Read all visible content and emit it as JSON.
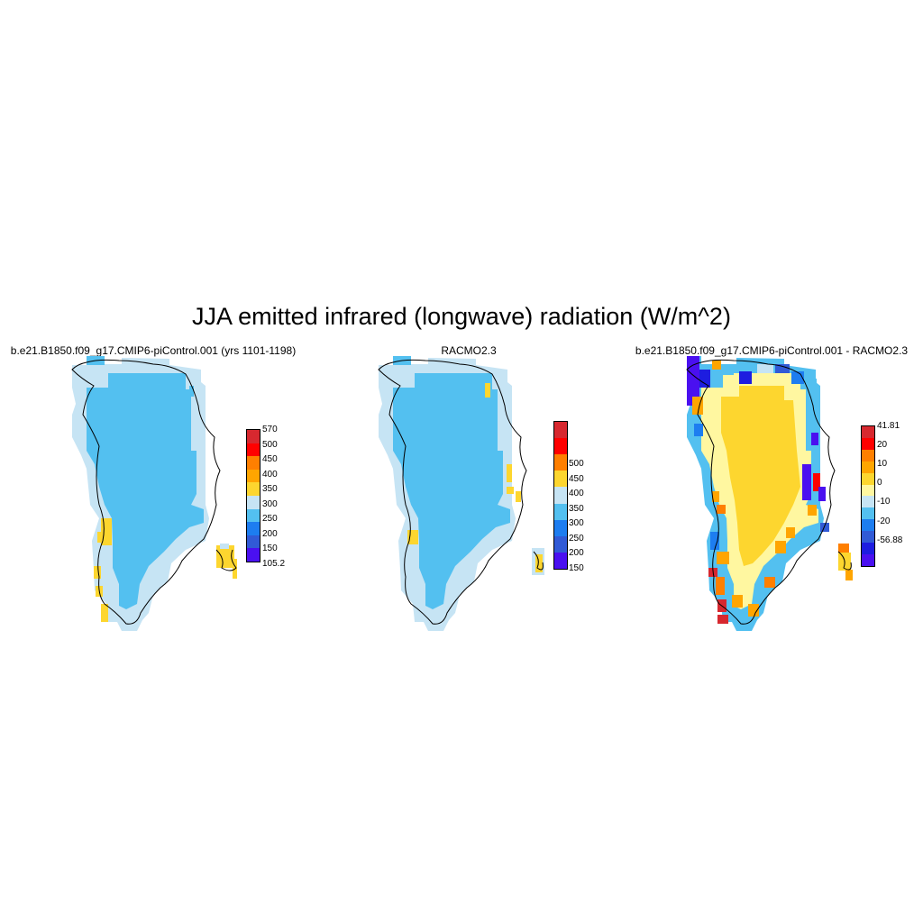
{
  "title": "JJA emitted infrared (longwave) radiation (W/m^2)",
  "panels": [
    {
      "title": "b.e21.B1850.f09_g17.CMIP6-piControl.001 (yrs 1101-1198)",
      "colorbar": {
        "labels": [
          "570",
          "500",
          "450",
          "400",
          "350",
          "300",
          "250",
          "200",
          "150",
          "105.2"
        ],
        "colors": [
          "#d7282f",
          "#ff0000",
          "#ff7f00",
          "#ffa500",
          "#fdd62f",
          "#c6e4f4",
          "#53c0f0",
          "#1d7df0",
          "#315ad6",
          "#4a10f0"
        ]
      }
    },
    {
      "title": "RACMO2.3",
      "colorbar": {
        "labels": [
          "500",
          "450",
          "400",
          "350",
          "300",
          "250",
          "200",
          "150"
        ],
        "colors": [
          "#d7282f",
          "#ff0000",
          "#ff7f00",
          "#fdd62f",
          "#c6e4f4",
          "#53c0f0",
          "#1d7df0",
          "#315ad6",
          "#4a10f0"
        ]
      }
    },
    {
      "title": "b.e21.B1850.f09_g17.CMIP6-piControl.001 - RACMO2.3",
      "colorbar": {
        "labels": [
          "41.81",
          "20",
          "10",
          "0",
          "-10",
          "-20",
          "-56.88"
        ],
        "colors": [
          "#d7282f",
          "#ff0000",
          "#ff7f00",
          "#ffa500",
          "#fdd62f",
          "#fff7a0",
          "#c6e4f4",
          "#53c0f0",
          "#1d7df0",
          "#315ad6",
          "#1d1de0",
          "#4a10f0"
        ]
      }
    }
  ]
}
